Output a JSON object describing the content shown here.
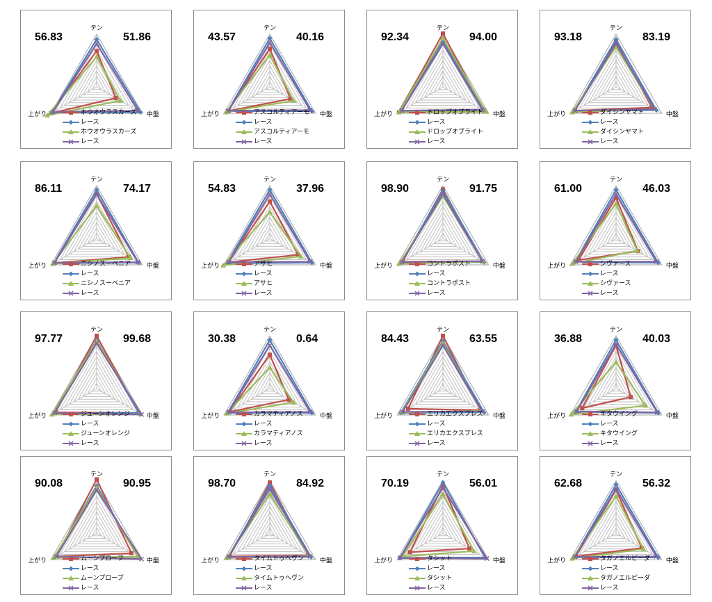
{
  "axes": [
    "テン",
    "中盤",
    "上がり"
  ],
  "chart_data": [
    {
      "type": "radar",
      "left_value": "56.83",
      "right_value": "51.86",
      "axes": [
        "テン",
        "中盤",
        "上がり"
      ],
      "rmax": 100,
      "legend": [
        "ホウオウラスカーズ",
        "レース",
        "ホウオウラスカーズ",
        "レース"
      ],
      "series": [
        {
          "name": "ホウオウラスカーズ",
          "values": [
            68,
            42,
            100
          ]
        },
        {
          "name": "レース",
          "values": [
            90,
            96,
            98
          ]
        },
        {
          "name": "ホウオウラスカーズ",
          "values": [
            57,
            52,
            108
          ]
        },
        {
          "name": "レース",
          "values": [
            82,
            90,
            96
          ]
        }
      ]
    },
    {
      "type": "radar",
      "left_value": "43.57",
      "right_value": "40.16",
      "axes": [
        "テン",
        "中盤",
        "上がり"
      ],
      "rmax": 100,
      "legend": [
        "アスコルティアーモ",
        "レース",
        "アスコルティアーモ",
        "レース"
      ],
      "series": [
        {
          "name": "アスコルティアーモ",
          "values": [
            72,
            45,
            92
          ]
        },
        {
          "name": "レース",
          "values": [
            92,
            92,
            92
          ]
        },
        {
          "name": "アスコルティアーモ",
          "values": [
            60,
            52,
            96
          ]
        },
        {
          "name": "レース",
          "values": [
            84,
            88,
            90
          ]
        }
      ]
    },
    {
      "type": "radar",
      "left_value": "92.34",
      "right_value": "94.00",
      "axes": [
        "テン",
        "中盤",
        "上がり"
      ],
      "rmax": 100,
      "legend": [
        "ドロップオブライト",
        "レース",
        "ドロップオブライト",
        "レース"
      ],
      "series": [
        {
          "name": "ドロップオブライト",
          "values": [
            101,
            90,
            96
          ]
        },
        {
          "name": "レース",
          "values": [
            88,
            88,
            92
          ]
        },
        {
          "name": "ドロップオブライト",
          "values": [
            92,
            94,
            96
          ]
        },
        {
          "name": "レース",
          "values": [
            82,
            86,
            90
          ]
        }
      ]
    },
    {
      "type": "radar",
      "left_value": "93.18",
      "right_value": "83.19",
      "axes": [
        "テン",
        "中盤",
        "上がり"
      ],
      "rmax": 100,
      "legend": [
        "ダイシンヤマト",
        "レース",
        "ダイシンヤマト",
        "レース"
      ],
      "series": [
        {
          "name": "ダイシンヤマト",
          "values": [
            85,
            78,
            90
          ]
        },
        {
          "name": "レース",
          "values": [
            90,
            88,
            92
          ]
        },
        {
          "name": "ダイシンヤマト",
          "values": [
            76,
            83,
            96
          ]
        },
        {
          "name": "レース",
          "values": [
            82,
            84,
            90
          ]
        }
      ]
    },
    {
      "type": "radar",
      "left_value": "86.11",
      "right_value": "74.17",
      "axes": [
        "テン",
        "中盤",
        "上がり"
      ],
      "rmax": 100,
      "legend": [
        "ニシノスーベニア",
        "レース",
        "ニシノスーベニア",
        "レース"
      ],
      "series": [
        {
          "name": "ニシノスーベニア",
          "values": [
            85,
            70,
            93
          ]
        },
        {
          "name": "レース",
          "values": [
            92,
            92,
            94
          ]
        },
        {
          "name": "ニシノスーベニア",
          "values": [
            62,
            74,
            96
          ]
        },
        {
          "name": "レース",
          "values": [
            84,
            90,
            92
          ]
        }
      ]
    },
    {
      "type": "radar",
      "left_value": "54.83",
      "right_value": "37.96",
      "axes": [
        "テン",
        "中盤",
        "上がり"
      ],
      "rmax": 100,
      "legend": [
        "アサヒ",
        "レース",
        "アサヒ",
        "レース"
      ],
      "series": [
        {
          "name": "アサヒ",
          "values": [
            70,
            62,
            90
          ]
        },
        {
          "name": "レース",
          "values": [
            92,
            92,
            94
          ]
        },
        {
          "name": "アサヒ",
          "values": [
            50,
            68,
            102
          ]
        },
        {
          "name": "レース",
          "values": [
            84,
            88,
            90
          ]
        }
      ]
    },
    {
      "type": "radar",
      "left_value": "98.90",
      "right_value": "91.75",
      "axes": [
        "テン",
        "中盤",
        "上がり"
      ],
      "rmax": 100,
      "legend": [
        "コントラポスト",
        "レース",
        "コントラポスト",
        "レース"
      ],
      "series": [
        {
          "name": "コントラポスト",
          "values": [
            93,
            86,
            88
          ]
        },
        {
          "name": "レース",
          "values": [
            90,
            90,
            92
          ]
        },
        {
          "name": "コントラポスト",
          "values": [
            80,
            88,
            96
          ]
        },
        {
          "name": "レース",
          "values": [
            84,
            86,
            90
          ]
        }
      ]
    },
    {
      "type": "radar",
      "left_value": "61.00",
      "right_value": "46.03",
      "axes": [
        "テン",
        "中盤",
        "上がり"
      ],
      "rmax": 100,
      "legend": [
        "シヴァース",
        "レース",
        "シヴァース",
        "レース"
      ],
      "series": [
        {
          "name": "シヴァース",
          "values": [
            77,
            48,
            82
          ]
        },
        {
          "name": "レース",
          "values": [
            92,
            92,
            90
          ]
        },
        {
          "name": "シヴァース",
          "values": [
            66,
            46,
            96
          ]
        },
        {
          "name": "レース",
          "values": [
            84,
            88,
            88
          ]
        }
      ]
    },
    {
      "type": "radar",
      "left_value": "97.77",
      "right_value": "99.68",
      "axes": [
        "テン",
        "中盤",
        "上がり"
      ],
      "rmax": 100,
      "legend": [
        "ジューンオレンジ",
        "レース",
        "ジューンオレンジ",
        "レース"
      ],
      "series": [
        {
          "name": "ジューンオレンジ",
          "values": [
            100,
            92,
            90
          ]
        },
        {
          "name": "レース",
          "values": [
            92,
            92,
            94
          ]
        },
        {
          "name": "ジューンオレンジ",
          "values": [
            90,
            96,
            98
          ]
        },
        {
          "name": "レース",
          "values": [
            86,
            98,
            92
          ]
        }
      ]
    },
    {
      "type": "radar",
      "left_value": "30.38",
      "right_value": "0.64",
      "axes": [
        "テン",
        "中盤",
        "上がり"
      ],
      "rmax": 100,
      "legend": [
        "カラマティアノス",
        "レース",
        "カラマティアノス",
        "レース"
      ],
      "series": [
        {
          "name": "カラマティアノス",
          "values": [
            64,
            42,
            88
          ]
        },
        {
          "name": "レース",
          "values": [
            92,
            92,
            92
          ]
        },
        {
          "name": "カラマティアノス",
          "values": [
            40,
            52,
            94
          ]
        },
        {
          "name": "レース",
          "values": [
            82,
            88,
            90
          ]
        }
      ]
    },
    {
      "type": "radar",
      "left_value": "84.43",
      "right_value": "63.55",
      "axes": [
        "テン",
        "中盤",
        "上がり"
      ],
      "rmax": 100,
      "legend": [
        "エリカエクスプレス",
        "レース",
        "エリカエクスプレス",
        "レース"
      ],
      "series": [
        {
          "name": "エリカエクスプレス",
          "values": [
            100,
            82,
            76
          ]
        },
        {
          "name": "レース",
          "values": [
            90,
            90,
            92
          ]
        },
        {
          "name": "エリカエクスプレス",
          "values": [
            86,
            84,
            90
          ]
        },
        {
          "name": "レース",
          "values": [
            82,
            86,
            88
          ]
        }
      ]
    },
    {
      "type": "radar",
      "left_value": "36.88",
      "right_value": "40.03",
      "axes": [
        "テン",
        "中盤",
        "上がり"
      ],
      "rmax": 100,
      "legend": [
        "キタウイング",
        "レース",
        "キタウイング",
        "レース"
      ],
      "series": [
        {
          "name": "キタウイング",
          "values": [
            82,
            32,
            74
          ]
        },
        {
          "name": "レース",
          "values": [
            92,
            92,
            88
          ]
        },
        {
          "name": "キタウイング",
          "values": [
            50,
            64,
            98
          ]
        },
        {
          "name": "レース",
          "values": [
            84,
            90,
            86
          ]
        }
      ]
    },
    {
      "type": "radar",
      "left_value": "90.08",
      "right_value": "90.95",
      "axes": [
        "テン",
        "中盤",
        "上がり"
      ],
      "rmax": 100,
      "legend": [
        "ムーンプローブ",
        "レース",
        "ムーンプローブ",
        "レース"
      ],
      "series": [
        {
          "name": "ムーンプローブ",
          "values": [
            102,
            76,
            88
          ]
        },
        {
          "name": "レース",
          "values": [
            90,
            90,
            92
          ]
        },
        {
          "name": "ムーンプローブ",
          "values": [
            86,
            90,
            94
          ]
        },
        {
          "name": "レース",
          "values": [
            82,
            98,
            88
          ]
        }
      ]
    },
    {
      "type": "radar",
      "left_value": "98.70",
      "right_value": "84.92",
      "axes": [
        "テン",
        "中盤",
        "上がり"
      ],
      "rmax": 100,
      "legend": [
        "タイムトゥヘヴン",
        "レース",
        "タイムトゥヘヴン",
        "レース"
      ],
      "series": [
        {
          "name": "タイムトゥヘヴン",
          "values": [
            96,
            84,
            88
          ]
        },
        {
          "name": "レース",
          "values": [
            90,
            90,
            92
          ]
        },
        {
          "name": "タイムトゥヘヴン",
          "values": [
            74,
            86,
            94
          ]
        },
        {
          "name": "レース",
          "values": [
            84,
            88,
            90
          ]
        }
      ]
    },
    {
      "type": "radar",
      "left_value": "70.19",
      "right_value": "56.01",
      "axes": [
        "テン",
        "中盤",
        "上がり"
      ],
      "rmax": 100,
      "legend": [
        "タシット",
        "レース",
        "タシット",
        "レース"
      ],
      "series": [
        {
          "name": "タシット",
          "values": [
            90,
            58,
            72
          ]
        },
        {
          "name": "レース",
          "values": [
            96,
            92,
            94
          ]
        },
        {
          "name": "タシット",
          "values": [
            74,
            68,
            88
          ]
        },
        {
          "name": "レース",
          "values": [
            86,
            96,
            94
          ]
        }
      ]
    },
    {
      "type": "radar",
      "left_value": "62.68",
      "right_value": "56.32",
      "axes": [
        "テン",
        "中盤",
        "上がり"
      ],
      "rmax": 100,
      "legend": [
        "タガノエルピーダ",
        "レース",
        "タガノエルピーダ",
        "レース"
      ],
      "series": [
        {
          "name": "タガノエルピーダ",
          "values": [
            82,
            56,
            88
          ]
        },
        {
          "name": "レース",
          "values": [
            92,
            92,
            92
          ]
        },
        {
          "name": "タガノエルピーダ",
          "values": [
            70,
            60,
            96
          ]
        },
        {
          "name": "レース",
          "values": [
            84,
            88,
            90
          ]
        }
      ]
    }
  ],
  "series_colors": [
    "#c0504d",
    "#4f81bd",
    "#9bbb59",
    "#8064a2"
  ],
  "series_markers": [
    "square",
    "diamond",
    "triangle",
    "x"
  ]
}
